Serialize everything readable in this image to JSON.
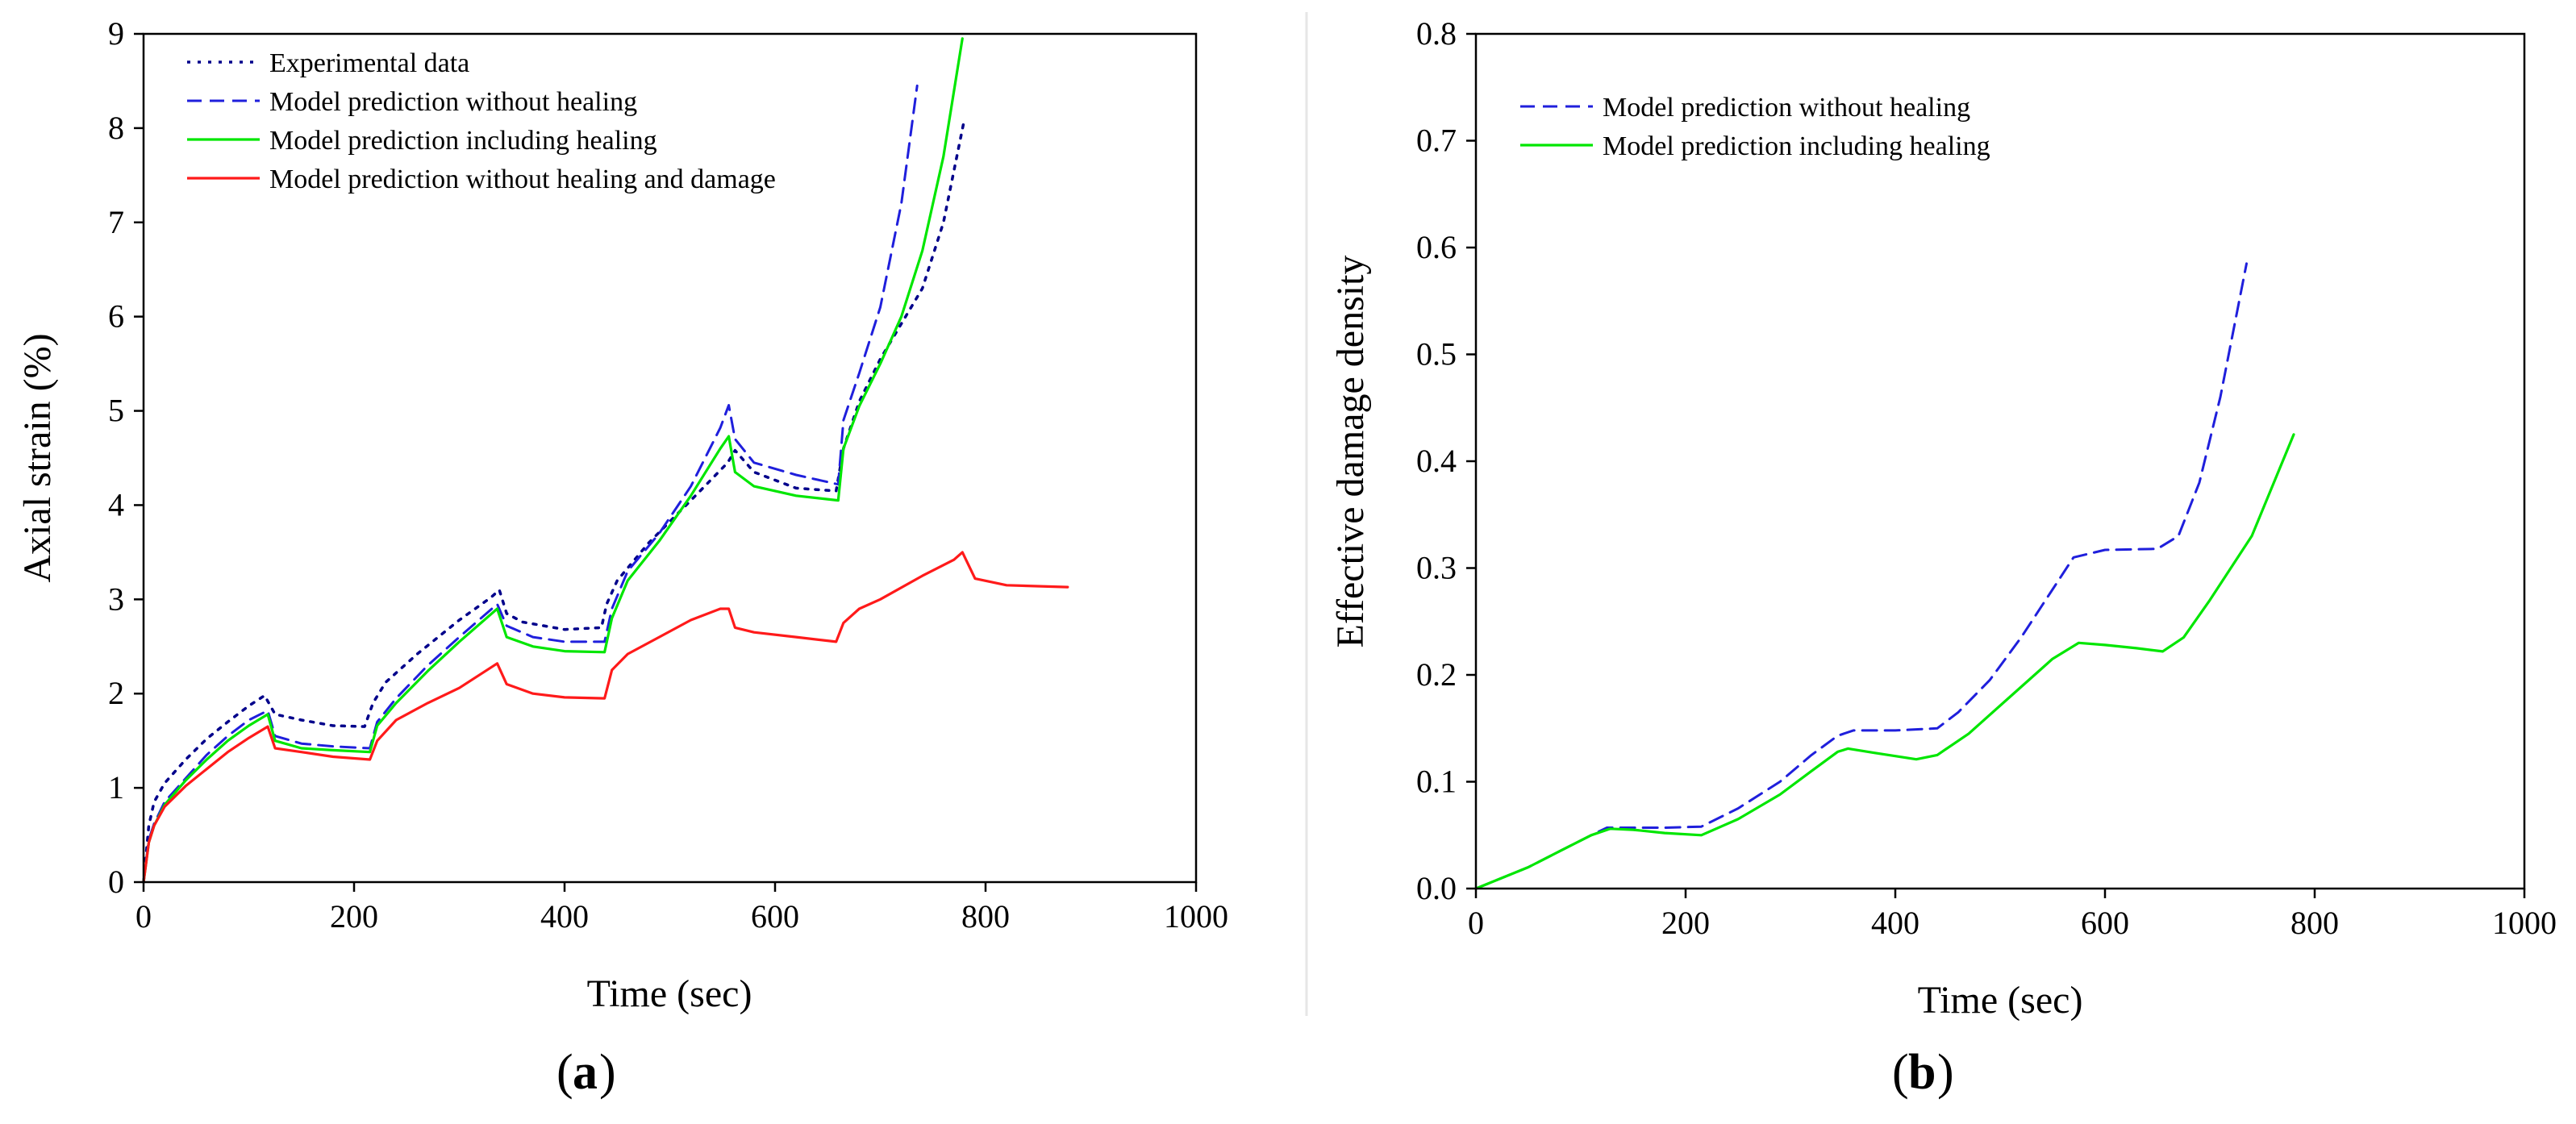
{
  "colors": {
    "experimental": "#00008b",
    "no_healing": "#1f1fdc",
    "healing": "#00e600",
    "no_healing_damage": "#ff1a1a",
    "divider": "#e6e6e6"
  },
  "panel_labels": {
    "a": "a",
    "b": "b"
  },
  "chart_data": [
    {
      "type": "line",
      "panel": "a",
      "xlabel": "Time (sec)",
      "ylabel": "Axial strain (%)",
      "xlim": [
        0,
        1000
      ],
      "ylim": [
        0,
        9
      ],
      "xticks": [
        0,
        200,
        400,
        600,
        800,
        1000
      ],
      "yticks": [
        0,
        1,
        2,
        3,
        4,
        5,
        6,
        7,
        8,
        9
      ],
      "legend_position": "top-left",
      "series": [
        {
          "name": "Experimental data",
          "style": "dotted",
          "color_key": "experimental",
          "x": [
            0,
            5,
            10,
            20,
            40,
            60,
            80,
            100,
            115,
            125,
            150,
            180,
            210,
            218,
            230,
            260,
            300,
            330,
            338,
            345,
            360,
            400,
            435,
            440,
            450,
            480,
            520,
            555,
            562,
            580,
            620,
            658,
            665,
            680,
            700,
            740,
            760,
            780
          ],
          "values": [
            0,
            0.6,
            0.85,
            1.05,
            1.3,
            1.52,
            1.7,
            1.87,
            1.98,
            1.78,
            1.72,
            1.66,
            1.65,
            1.9,
            2.12,
            2.42,
            2.78,
            3.02,
            3.1,
            2.85,
            2.76,
            2.68,
            2.7,
            2.95,
            3.2,
            3.6,
            4.05,
            4.45,
            4.58,
            4.35,
            4.18,
            4.15,
            4.6,
            5.1,
            5.55,
            6.3,
            7.0,
            8.1
          ]
        },
        {
          "name": "Model prediction without healing",
          "style": "dashed",
          "color_key": "no_healing",
          "x": [
            0,
            5,
            10,
            20,
            40,
            60,
            80,
            100,
            118,
            125,
            150,
            180,
            215,
            222,
            240,
            270,
            300,
            336,
            345,
            370,
            400,
            438,
            445,
            460,
            490,
            520,
            548,
            556,
            562,
            580,
            620,
            660,
            665,
            680,
            700,
            720,
            735
          ],
          "values": [
            0,
            0.45,
            0.62,
            0.85,
            1.1,
            1.35,
            1.55,
            1.72,
            1.82,
            1.55,
            1.47,
            1.44,
            1.42,
            1.7,
            1.95,
            2.3,
            2.6,
            2.95,
            2.72,
            2.6,
            2.55,
            2.55,
            2.9,
            3.3,
            3.7,
            4.2,
            4.82,
            5.06,
            4.7,
            4.45,
            4.32,
            4.22,
            4.9,
            5.4,
            6.1,
            7.2,
            8.45
          ]
        },
        {
          "name": "Model prediction including healing",
          "style": "solid",
          "color_key": "healing",
          "x": [
            0,
            5,
            10,
            20,
            40,
            60,
            80,
            100,
            118,
            125,
            150,
            180,
            215,
            222,
            240,
            270,
            300,
            336,
            345,
            370,
            400,
            438,
            445,
            460,
            490,
            520,
            548,
            556,
            562,
            580,
            620,
            660,
            665,
            680,
            700,
            720,
            740,
            760,
            778
          ],
          "values": [
            0,
            0.42,
            0.6,
            0.82,
            1.08,
            1.3,
            1.5,
            1.66,
            1.78,
            1.5,
            1.42,
            1.4,
            1.38,
            1.66,
            1.9,
            2.24,
            2.55,
            2.9,
            2.6,
            2.5,
            2.45,
            2.44,
            2.8,
            3.2,
            3.62,
            4.1,
            4.6,
            4.73,
            4.35,
            4.2,
            4.1,
            4.05,
            4.6,
            5.05,
            5.5,
            6.0,
            6.7,
            7.7,
            8.95
          ]
        },
        {
          "name": "Model prediction without healing and damage",
          "style": "solid",
          "color_key": "no_healing_damage",
          "x": [
            0,
            5,
            10,
            20,
            40,
            60,
            80,
            100,
            118,
            125,
            150,
            180,
            215,
            222,
            240,
            270,
            300,
            336,
            345,
            370,
            400,
            438,
            445,
            460,
            490,
            520,
            548,
            556,
            562,
            580,
            620,
            658,
            665,
            680,
            700,
            740,
            770,
            778,
            790,
            820,
            878
          ],
          "values": [
            0,
            0.42,
            0.6,
            0.8,
            1.02,
            1.2,
            1.38,
            1.53,
            1.65,
            1.42,
            1.38,
            1.33,
            1.3,
            1.5,
            1.72,
            1.9,
            2.06,
            2.32,
            2.1,
            2.0,
            1.96,
            1.95,
            2.25,
            2.42,
            2.6,
            2.78,
            2.9,
            2.9,
            2.7,
            2.65,
            2.6,
            2.55,
            2.75,
            2.9,
            3.0,
            3.25,
            3.42,
            3.5,
            3.22,
            3.15,
            3.13
          ]
        }
      ]
    },
    {
      "type": "line",
      "panel": "b",
      "xlabel": "Time (sec)",
      "ylabel": "Effective damage density",
      "xlim": [
        0,
        1000
      ],
      "ylim": [
        0,
        0.8
      ],
      "xticks": [
        0,
        200,
        400,
        600,
        800,
        1000
      ],
      "yticks": [
        0.0,
        0.1,
        0.2,
        0.3,
        0.4,
        0.5,
        0.6,
        0.7,
        0.8
      ],
      "ytick_labels": [
        "0.0",
        "0.1",
        "0.2",
        "0.3",
        "0.4",
        "0.5",
        "0.6",
        "0.7",
        "0.8"
      ],
      "legend_position": "top-left",
      "series": [
        {
          "name": "Model prediction without healing",
          "style": "dashed",
          "color_key": "no_healing",
          "x": [
            0,
            20,
            50,
            80,
            110,
            125,
            150,
            180,
            215,
            250,
            290,
            320,
            345,
            360,
            400,
            440,
            460,
            490,
            520,
            550,
            570,
            600,
            650,
            670,
            690,
            710,
            735
          ],
          "values": [
            0,
            0.008,
            0.02,
            0.035,
            0.05,
            0.057,
            0.057,
            0.057,
            0.058,
            0.075,
            0.1,
            0.125,
            0.143,
            0.148,
            0.148,
            0.15,
            0.165,
            0.195,
            0.235,
            0.28,
            0.31,
            0.317,
            0.318,
            0.33,
            0.38,
            0.46,
            0.585
          ]
        },
        {
          "name": "Model prediction including healing",
          "style": "solid",
          "color_key": "healing",
          "x": [
            0,
            20,
            50,
            80,
            110,
            128,
            150,
            180,
            215,
            250,
            290,
            320,
            345,
            355,
            380,
            420,
            440,
            470,
            510,
            550,
            575,
            600,
            630,
            655,
            675,
            700,
            740,
            780
          ],
          "values": [
            0,
            0.008,
            0.02,
            0.035,
            0.05,
            0.056,
            0.055,
            0.052,
            0.05,
            0.065,
            0.088,
            0.11,
            0.128,
            0.131,
            0.127,
            0.121,
            0.125,
            0.145,
            0.18,
            0.215,
            0.23,
            0.228,
            0.225,
            0.222,
            0.235,
            0.27,
            0.33,
            0.425
          ]
        }
      ]
    }
  ]
}
